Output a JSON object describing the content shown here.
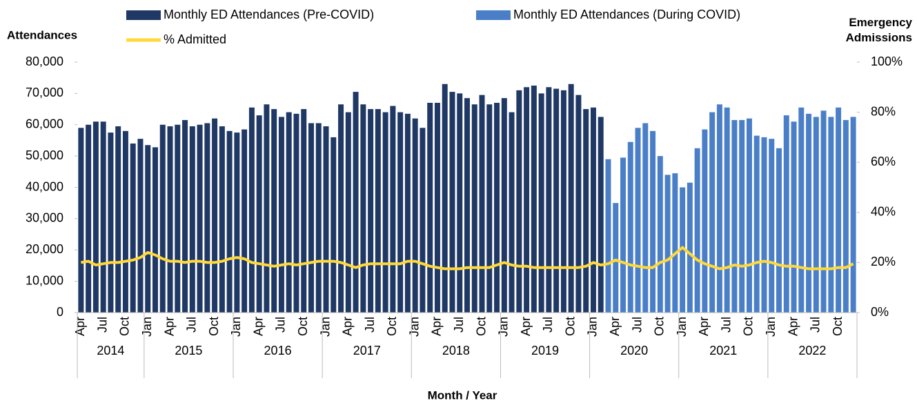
{
  "chart_data": {
    "type": "bar",
    "y_axis_label": "Attendances",
    "y2_axis_label": "Emergency Admissions",
    "x_axis_label": "Month / Year",
    "legend": "top",
    "categories": [
      "Apr",
      null,
      null,
      "Jul",
      null,
      null,
      "Oct",
      null,
      null,
      "Jan",
      null,
      null,
      "Apr",
      null,
      null,
      "Jul",
      null,
      null,
      "Oct",
      null,
      null,
      "Jan",
      null,
      null,
      "Apr",
      null,
      null,
      "Jul",
      null,
      null,
      "Oct",
      null,
      null,
      "Jan",
      null,
      null,
      "Apr",
      null,
      null,
      "Jul",
      null,
      null,
      "Oct",
      null,
      null,
      "Jan",
      null,
      null,
      "Apr",
      null,
      null,
      "Jul",
      null,
      null,
      "Oct",
      null,
      null,
      "Jan",
      null,
      null,
      "Apr",
      null,
      null,
      "Jul",
      null,
      null,
      "Oct",
      null,
      null,
      "Jan",
      null,
      null,
      "Apr",
      null,
      null,
      "Jul",
      null,
      null,
      "Oct",
      null,
      null,
      "Jan",
      null,
      null,
      "Apr",
      null,
      null,
      "Jul",
      null,
      null,
      "Oct",
      null,
      null,
      "Jan",
      null,
      null,
      "Apr",
      null,
      null,
      "Jul",
      null,
      null,
      "Oct",
      null,
      null
    ],
    "year_groups": [
      "2014",
      "2015",
      "2016",
      "2017",
      "2018",
      "2019",
      "2020",
      "2021",
      "2022"
    ],
    "series": [
      {
        "name": "Monthly ED Attendances (Pre-COVID)",
        "color": "#1f3864",
        "type": "bar",
        "values": [
          59000,
          60000,
          61000,
          61000,
          57500,
          59500,
          58000,
          54000,
          55500,
          53500,
          52800,
          60000,
          59500,
          60000,
          61500,
          59500,
          60000,
          60500,
          62000,
          59500,
          58000,
          57500,
          58500,
          65500,
          63000,
          66500,
          65000,
          62500,
          64000,
          63500,
          65000,
          60500,
          60500,
          59500,
          56000,
          66500,
          64000,
          70500,
          66500,
          65000,
          65000,
          64000,
          66000,
          64000,
          63500,
          62000,
          59000,
          67000,
          67000,
          73000,
          70500,
          70000,
          68500,
          66500,
          69500,
          66500,
          67000,
          68500,
          64000,
          71000,
          72000,
          72500,
          70000,
          72000,
          71500,
          71000,
          73000,
          69500,
          65000,
          65500,
          62500,
          null,
          null,
          null,
          null,
          null,
          null,
          null,
          null,
          null,
          null,
          null,
          null,
          null,
          null,
          null,
          null,
          null,
          null,
          null,
          null,
          null,
          null,
          null,
          null,
          null,
          null,
          null,
          null,
          null,
          null,
          null,
          null,
          null,
          null
        ]
      },
      {
        "name": "Monthly ED Attendances (During COVID)",
        "color": "#4a7fc8",
        "type": "bar",
        "values": [
          null,
          null,
          null,
          null,
          null,
          null,
          null,
          null,
          null,
          null,
          null,
          null,
          null,
          null,
          null,
          null,
          null,
          null,
          null,
          null,
          null,
          null,
          null,
          null,
          null,
          null,
          null,
          null,
          null,
          null,
          null,
          null,
          null,
          null,
          null,
          null,
          null,
          null,
          null,
          null,
          null,
          null,
          null,
          null,
          null,
          null,
          null,
          null,
          null,
          null,
          null,
          null,
          null,
          null,
          null,
          null,
          null,
          null,
          null,
          null,
          null,
          null,
          null,
          null,
          null,
          null,
          null,
          null,
          null,
          null,
          null,
          49000,
          35000,
          49500,
          54500,
          59000,
          60500,
          58000,
          50000,
          44000,
          44500,
          40000,
          41500,
          52500,
          58500,
          64000,
          66500,
          65500,
          61500,
          61500,
          62000,
          56500,
          56000,
          55500,
          52500,
          63000,
          61000,
          65500,
          63500,
          62500,
          64500,
          62500,
          65500,
          61500,
          62500
        ]
      },
      {
        "name": "% Admitted",
        "color": "#ffd93a",
        "type": "line",
        "axis": "y2",
        "values": [
          20,
          20.5,
          19,
          19.5,
          20,
          20,
          20.5,
          21,
          22,
          24,
          23,
          21.5,
          20.5,
          20.5,
          20,
          20.5,
          20.5,
          20,
          20,
          20.5,
          21.5,
          22,
          21.5,
          20,
          19.5,
          19,
          18.5,
          19,
          19.5,
          19,
          19.5,
          20,
          20.5,
          20.5,
          20.5,
          20,
          19,
          18,
          19,
          19.5,
          19.5,
          19.5,
          19.5,
          19.5,
          20.5,
          20.5,
          19.5,
          18.5,
          18,
          17.5,
          17.5,
          17.5,
          18,
          18,
          18,
          18,
          19,
          20,
          19,
          18.5,
          18.5,
          18,
          18,
          18,
          18,
          18,
          18,
          18,
          18.5,
          20,
          19,
          19.5,
          21,
          20,
          19,
          18.5,
          18,
          18,
          20,
          21,
          23.5,
          26,
          23.5,
          21,
          19.5,
          18.5,
          17.5,
          18,
          19,
          18.5,
          19,
          20,
          20.5,
          20,
          19,
          18.5,
          18.5,
          18,
          17.5,
          17.5,
          17.5,
          17.5,
          18,
          18,
          19.5
        ]
      }
    ],
    "ylim": [
      0,
      80000
    ],
    "yticks": [
      0,
      {
        "value": 10000,
        "label": "10,000"
      },
      {
        "value": 20000,
        "label": "20,000"
      },
      {
        "value": 30000,
        "label": "30,000"
      },
      {
        "value": 40000,
        "label": "40,000"
      },
      {
        "value": 50000,
        "label": "50,000"
      },
      {
        "value": 60000,
        "label": "60,000"
      },
      {
        "value": 70000,
        "label": "70,000"
      },
      {
        "value": 80000,
        "label": "80,000"
      }
    ],
    "y2lim": [
      0,
      100
    ],
    "y2ticks": [
      {
        "value": 0,
        "label": "0%"
      },
      {
        "value": 20,
        "label": "20%"
      },
      {
        "value": 40,
        "label": "40%"
      },
      {
        "value": 60,
        "label": "60%"
      },
      {
        "value": 80,
        "label": "80%"
      },
      {
        "value": 100,
        "label": "100%"
      }
    ],
    "grid": false
  }
}
